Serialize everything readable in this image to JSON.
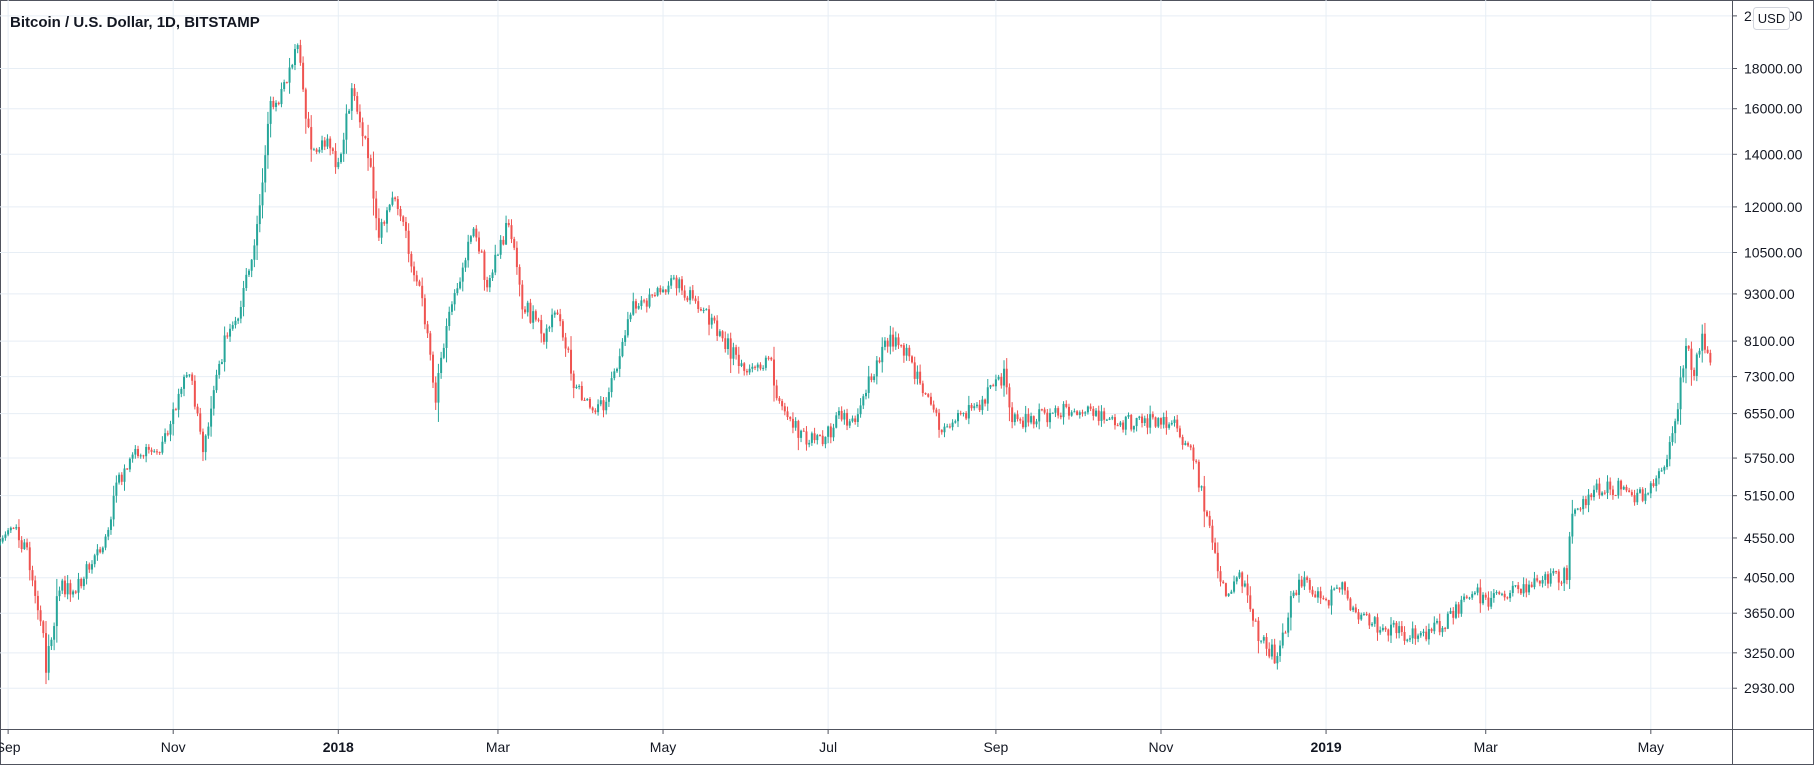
{
  "chart_data": {
    "type": "candlestick",
    "title": "Bitcoin / U.S. Dollar, 1D, BITSTAMP",
    "currency": "USD",
    "y_scale": "log",
    "ylim": [
      2600,
      22000
    ],
    "xlim": [
      "2017-08-29",
      "2019-05-31"
    ],
    "grid": true,
    "colors": {
      "up": "#26a69a",
      "down": "#ef5350",
      "grid": "#e7eef5",
      "axis": "#50535e"
    },
    "y_ticks": [
      "2930.00",
      "3250.00",
      "3650.00",
      "4050.00",
      "4550.00",
      "5150.00",
      "5750.00",
      "6550.00",
      "7300.00",
      "8100.00",
      "9300.00",
      "10500.00",
      "12000.00",
      "14000.00",
      "16000.00",
      "18000.00",
      "21000.00"
    ],
    "x_ticks": [
      {
        "label": "Sep",
        "date": "2017-09-01"
      },
      {
        "label": "Nov",
        "date": "2017-11-01"
      },
      {
        "label": "2018",
        "date": "2018-01-01",
        "major": true
      },
      {
        "label": "Mar",
        "date": "2018-03-01"
      },
      {
        "label": "May",
        "date": "2018-05-01"
      },
      {
        "label": "Jul",
        "date": "2018-07-01"
      },
      {
        "label": "Sep",
        "date": "2018-09-01"
      },
      {
        "label": "Nov",
        "date": "2018-11-01"
      },
      {
        "label": "2019",
        "date": "2019-01-01",
        "major": true
      },
      {
        "label": "Mar",
        "date": "2019-03-01"
      },
      {
        "label": "May",
        "date": "2019-05-01"
      }
    ],
    "close_path": [
      [
        "2017-08-29",
        4580
      ],
      [
        "2017-09-02",
        4700
      ],
      [
        "2017-09-08",
        4400
      ],
      [
        "2017-09-14",
        3400
      ],
      [
        "2017-09-15",
        3100
      ],
      [
        "2017-09-20",
        3950
      ],
      [
        "2017-09-26",
        3950
      ],
      [
        "2017-10-05",
        4350
      ],
      [
        "2017-10-12",
        5400
      ],
      [
        "2017-10-20",
        5900
      ],
      [
        "2017-10-27",
        5800
      ],
      [
        "2017-11-05",
        7350
      ],
      [
        "2017-11-08",
        7200
      ],
      [
        "2017-11-12",
        5900
      ],
      [
        "2017-11-20",
        8100
      ],
      [
        "2017-11-26",
        9000
      ],
      [
        "2017-12-01",
        10800
      ],
      [
        "2017-12-07",
        16000
      ],
      [
        "2017-12-12",
        17000
      ],
      [
        "2017-12-17",
        19200
      ],
      [
        "2017-12-22",
        14000
      ],
      [
        "2017-12-28",
        14500
      ],
      [
        "2018-01-01",
        13500
      ],
      [
        "2018-01-06",
        17000
      ],
      [
        "2018-01-12",
        14000
      ],
      [
        "2018-01-16",
        11200
      ],
      [
        "2018-01-21",
        12500
      ],
      [
        "2018-01-25",
        11300
      ],
      [
        "2018-02-01",
        9000
      ],
      [
        "2018-02-06",
        6900
      ],
      [
        "2018-02-10",
        8400
      ],
      [
        "2018-02-20",
        11400
      ],
      [
        "2018-02-25",
        9600
      ],
      [
        "2018-03-05",
        11500
      ],
      [
        "2018-03-10",
        9100
      ],
      [
        "2018-03-18",
        8200
      ],
      [
        "2018-03-23",
        8800
      ],
      [
        "2018-03-30",
        7000
      ],
      [
        "2018-04-06",
        6700
      ],
      [
        "2018-04-10",
        6800
      ],
      [
        "2018-04-20",
        8900
      ],
      [
        "2018-04-30",
        9300
      ],
      [
        "2018-05-05",
        9800
      ],
      [
        "2018-05-10",
        9300
      ],
      [
        "2018-05-20",
        8500
      ],
      [
        "2018-05-30",
        7500
      ],
      [
        "2018-06-10",
        7600
      ],
      [
        "2018-06-12",
        6700
      ],
      [
        "2018-06-22",
        6100
      ],
      [
        "2018-06-29",
        6000
      ],
      [
        "2018-07-05",
        6500
      ],
      [
        "2018-07-10",
        6300
      ],
      [
        "2018-07-17",
        7300
      ],
      [
        "2018-07-24",
        8200
      ],
      [
        "2018-07-31",
        7700
      ],
      [
        "2018-08-05",
        7000
      ],
      [
        "2018-08-12",
        6300
      ],
      [
        "2018-08-25",
        6700
      ],
      [
        "2018-09-04",
        7300
      ],
      [
        "2018-09-07",
        6400
      ],
      [
        "2018-09-15",
        6500
      ],
      [
        "2018-09-25",
        6600
      ],
      [
        "2018-10-05",
        6600
      ],
      [
        "2018-10-15",
        6400
      ],
      [
        "2018-10-25",
        6400
      ],
      [
        "2018-11-06",
        6400
      ],
      [
        "2018-11-14",
        5600
      ],
      [
        "2018-11-20",
        4500
      ],
      [
        "2018-11-25",
        3800
      ],
      [
        "2018-11-30",
        4100
      ],
      [
        "2018-12-07",
        3400
      ],
      [
        "2018-12-14",
        3200
      ],
      [
        "2018-12-20",
        3900
      ],
      [
        "2018-12-24",
        4000
      ],
      [
        "2018-12-31",
        3750
      ],
      [
        "2019-01-08",
        3950
      ],
      [
        "2019-01-12",
        3600
      ],
      [
        "2019-01-28",
        3450
      ],
      [
        "2019-02-07",
        3400
      ],
      [
        "2019-02-15",
        3600
      ],
      [
        "2019-02-24",
        3900
      ],
      [
        "2019-02-28",
        3800
      ],
      [
        "2019-03-15",
        3900
      ],
      [
        "2019-03-31",
        4100
      ],
      [
        "2019-04-02",
        4900
      ],
      [
        "2019-04-10",
        5200
      ],
      [
        "2019-04-20",
        5300
      ],
      [
        "2019-04-26",
        5100
      ],
      [
        "2019-05-01",
        5350
      ],
      [
        "2019-05-08",
        5900
      ],
      [
        "2019-05-11",
        6800
      ],
      [
        "2019-05-14",
        7900
      ],
      [
        "2019-05-17",
        7400
      ],
      [
        "2019-05-20",
        8100
      ],
      [
        "2019-05-23",
        7800
      ]
    ]
  }
}
